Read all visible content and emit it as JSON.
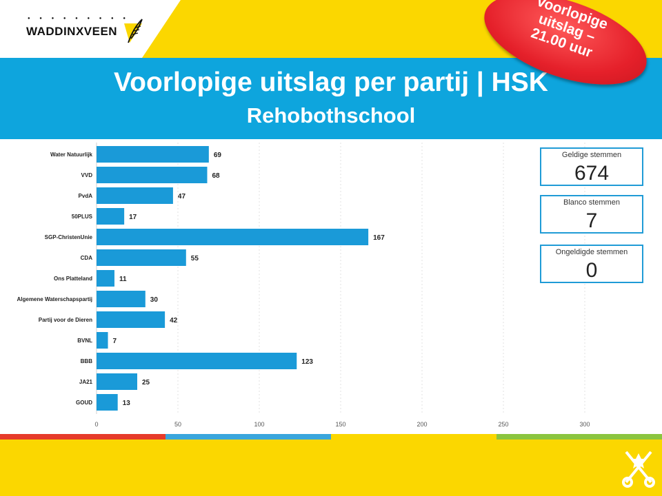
{
  "logo": {
    "text": "WADDINXVEEN"
  },
  "badge": {
    "line1": "Voorlopige",
    "line2": "uitslag –",
    "line3": "21.00 uur"
  },
  "header": {
    "title": "Voorlopige uitslag per partij | HSK",
    "subtitle": "Rehobothschool"
  },
  "kpis": [
    {
      "label": "Geldige stemmen",
      "value": "674"
    },
    {
      "label": "Blanco stemmen",
      "value": "7"
    },
    {
      "label": "Ongeldigde stemmen",
      "value": "0"
    }
  ],
  "colors": {
    "bar": "#1a9ad8",
    "yellow": "#fbd700",
    "blue": "#0ea5dd",
    "badge": "#e5202a",
    "stripe_red": "#e63b2a",
    "stripe_blue": "#3aa6dc",
    "stripe_green": "#8bc53f"
  },
  "chart_data": {
    "type": "bar",
    "orientation": "horizontal",
    "categories": [
      "Water Natuurlijk",
      "VVD",
      "PvdA",
      "50PLUS",
      "SGP-ChristenUnie",
      "CDA",
      "Ons Platteland",
      "Algemene Waterschapspartij",
      "Partij voor de Dieren",
      "BVNL",
      "BBB",
      "JA21",
      "GOUD"
    ],
    "values": [
      69,
      68,
      47,
      17,
      167,
      55,
      11,
      30,
      42,
      7,
      123,
      25,
      13
    ],
    "xticks": [
      0,
      50,
      100,
      150,
      200,
      250,
      300
    ],
    "xlim": [
      0,
      300
    ],
    "grid": true,
    "data_labels": true
  }
}
